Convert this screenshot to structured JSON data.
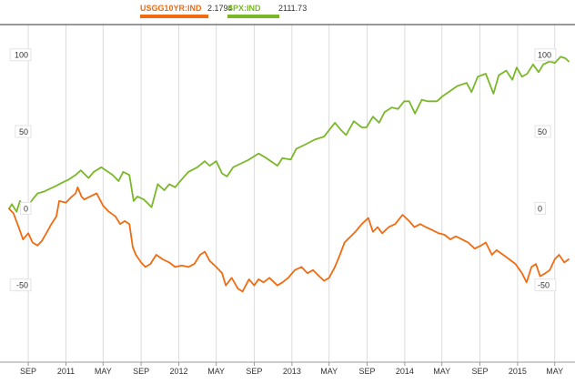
{
  "chart_data": {
    "type": "line",
    "title": "",
    "xlabel": "",
    "ylabel": "",
    "ylim": [
      -100,
      120
    ],
    "yticks": [
      100,
      50,
      0,
      -50
    ],
    "ytick_labels": [
      "100",
      "50",
      "0",
      "-50"
    ],
    "xlim": [
      "2010-07-01",
      "2015-06-15"
    ],
    "xticks": [
      {
        "date": "2010-09-01",
        "label": "SEP"
      },
      {
        "date": "2011-01-01",
        "label": "2011"
      },
      {
        "date": "2011-05-01",
        "label": "MAY"
      },
      {
        "date": "2011-09-01",
        "label": "SEP"
      },
      {
        "date": "2012-01-01",
        "label": "2012"
      },
      {
        "date": "2012-05-01",
        "label": "MAY"
      },
      {
        "date": "2012-09-01",
        "label": "SEP"
      },
      {
        "date": "2013-01-01",
        "label": "2013"
      },
      {
        "date": "2013-05-01",
        "label": "MAY"
      },
      {
        "date": "2013-09-01",
        "label": "SEP"
      },
      {
        "date": "2014-01-01",
        "label": "2014"
      },
      {
        "date": "2014-05-01",
        "label": "MAY"
      },
      {
        "date": "2014-09-01",
        "label": "SEP"
      },
      {
        "date": "2015-01-01",
        "label": "2015"
      },
      {
        "date": "2015-05-01",
        "label": "MAY"
      }
    ],
    "grid": "vertical",
    "legend_position": "top",
    "series": [
      {
        "name": "USGG10YR:IND",
        "last_value": "2.1794",
        "color": "#f26b10",
        "points": [
          [
            "2010-07-01",
            0
          ],
          [
            "2010-07-15",
            -3
          ],
          [
            "2010-08-01",
            -12
          ],
          [
            "2010-08-15",
            -20
          ],
          [
            "2010-09-01",
            -16
          ],
          [
            "2010-09-15",
            -22
          ],
          [
            "2010-10-01",
            -24
          ],
          [
            "2010-10-15",
            -21
          ],
          [
            "2010-11-01",
            -15
          ],
          [
            "2010-11-15",
            -10
          ],
          [
            "2010-12-01",
            -5
          ],
          [
            "2010-12-10",
            5
          ],
          [
            "2011-01-01",
            4
          ],
          [
            "2011-01-15",
            7
          ],
          [
            "2011-02-01",
            10
          ],
          [
            "2011-02-08",
            14
          ],
          [
            "2011-02-20",
            8
          ],
          [
            "2011-03-01",
            6
          ],
          [
            "2011-03-20",
            8
          ],
          [
            "2011-04-10",
            10
          ],
          [
            "2011-05-01",
            2
          ],
          [
            "2011-05-20",
            -2
          ],
          [
            "2011-06-10",
            -5
          ],
          [
            "2011-06-25",
            -10
          ],
          [
            "2011-07-10",
            -8
          ],
          [
            "2011-07-25",
            -10
          ],
          [
            "2011-08-05",
            -25
          ],
          [
            "2011-08-15",
            -30
          ],
          [
            "2011-09-01",
            -35
          ],
          [
            "2011-09-15",
            -38
          ],
          [
            "2011-10-01",
            -36
          ],
          [
            "2011-10-20",
            -30
          ],
          [
            "2011-11-10",
            -33
          ],
          [
            "2011-12-01",
            -35
          ],
          [
            "2011-12-20",
            -38
          ],
          [
            "2012-01-10",
            -37
          ],
          [
            "2012-02-01",
            -38
          ],
          [
            "2012-02-20",
            -36
          ],
          [
            "2012-03-10",
            -30
          ],
          [
            "2012-03-25",
            -28
          ],
          [
            "2012-04-10",
            -34
          ],
          [
            "2012-05-01",
            -38
          ],
          [
            "2012-05-20",
            -42
          ],
          [
            "2012-06-01",
            -50
          ],
          [
            "2012-06-20",
            -45
          ],
          [
            "2012-07-10",
            -52
          ],
          [
            "2012-07-25",
            -54
          ],
          [
            "2012-08-15",
            -46
          ],
          [
            "2012-09-01",
            -50
          ],
          [
            "2012-09-15",
            -46
          ],
          [
            "2012-10-01",
            -48
          ],
          [
            "2012-10-20",
            -45
          ],
          [
            "2012-11-15",
            -50
          ],
          [
            "2012-12-01",
            -48
          ],
          [
            "2012-12-20",
            -45
          ],
          [
            "2013-01-10",
            -40
          ],
          [
            "2013-02-01",
            -38
          ],
          [
            "2013-02-20",
            -42
          ],
          [
            "2013-03-10",
            -40
          ],
          [
            "2013-03-25",
            -43
          ],
          [
            "2013-04-15",
            -47
          ],
          [
            "2013-05-01",
            -45
          ],
          [
            "2013-05-20",
            -38
          ],
          [
            "2013-06-05",
            -30
          ],
          [
            "2013-06-20",
            -22
          ],
          [
            "2013-07-10",
            -18
          ],
          [
            "2013-07-25",
            -15
          ],
          [
            "2013-08-15",
            -10
          ],
          [
            "2013-09-05",
            -6
          ],
          [
            "2013-09-20",
            -15
          ],
          [
            "2013-10-05",
            -12
          ],
          [
            "2013-10-20",
            -16
          ],
          [
            "2013-11-10",
            -12
          ],
          [
            "2013-12-01",
            -10
          ],
          [
            "2013-12-25",
            -4
          ],
          [
            "2014-01-15",
            -8
          ],
          [
            "2014-02-01",
            -12
          ],
          [
            "2014-02-20",
            -10
          ],
          [
            "2014-03-10",
            -12
          ],
          [
            "2014-04-01",
            -14
          ],
          [
            "2014-04-20",
            -16
          ],
          [
            "2014-05-10",
            -17
          ],
          [
            "2014-05-28",
            -20
          ],
          [
            "2014-06-15",
            -18
          ],
          [
            "2014-07-05",
            -20
          ],
          [
            "2014-07-25",
            -22
          ],
          [
            "2014-08-15",
            -26
          ],
          [
            "2014-09-05",
            -24
          ],
          [
            "2014-09-20",
            -22
          ],
          [
            "2014-10-10",
            -30
          ],
          [
            "2014-10-25",
            -27
          ],
          [
            "2014-11-15",
            -30
          ],
          [
            "2014-12-05",
            -33
          ],
          [
            "2014-12-25",
            -36
          ],
          [
            "2015-01-15",
            -42
          ],
          [
            "2015-01-30",
            -48
          ],
          [
            "2015-02-15",
            -38
          ],
          [
            "2015-03-01",
            -36
          ],
          [
            "2015-03-15",
            -44
          ],
          [
            "2015-04-01",
            -42
          ],
          [
            "2015-04-15",
            -40
          ],
          [
            "2015-05-01",
            -33
          ],
          [
            "2015-05-15",
            -30
          ],
          [
            "2015-06-01",
            -35
          ],
          [
            "2015-06-15",
            -33
          ]
        ]
      },
      {
        "name": "SPX:IND",
        "last_value": "2111.73",
        "color": "#7ab829",
        "points": [
          [
            "2010-07-01",
            0
          ],
          [
            "2010-07-10",
            3
          ],
          [
            "2010-07-25",
            -2
          ],
          [
            "2010-08-05",
            5
          ],
          [
            "2010-08-20",
            0
          ],
          [
            "2010-09-01",
            2
          ],
          [
            "2010-09-15",
            6
          ],
          [
            "2010-10-01",
            10
          ],
          [
            "2010-10-20",
            11
          ],
          [
            "2010-11-10",
            13
          ],
          [
            "2010-12-01",
            15
          ],
          [
            "2010-12-20",
            17
          ],
          [
            "2011-01-10",
            19
          ],
          [
            "2011-02-01",
            22
          ],
          [
            "2011-02-18",
            25
          ],
          [
            "2011-03-15",
            20
          ],
          [
            "2011-04-01",
            24
          ],
          [
            "2011-04-25",
            27
          ],
          [
            "2011-05-10",
            25
          ],
          [
            "2011-06-01",
            22
          ],
          [
            "2011-06-20",
            18
          ],
          [
            "2011-07-05",
            24
          ],
          [
            "2011-07-25",
            22
          ],
          [
            "2011-08-08",
            5
          ],
          [
            "2011-08-20",
            8
          ],
          [
            "2011-09-10",
            6
          ],
          [
            "2011-09-25",
            3
          ],
          [
            "2011-10-05",
            1
          ],
          [
            "2011-10-25",
            16
          ],
          [
            "2011-11-15",
            12
          ],
          [
            "2011-12-01",
            16
          ],
          [
            "2011-12-20",
            14
          ],
          [
            "2012-01-10",
            19
          ],
          [
            "2012-02-01",
            24
          ],
          [
            "2012-03-01",
            27
          ],
          [
            "2012-03-25",
            31
          ],
          [
            "2012-04-10",
            28
          ],
          [
            "2012-05-01",
            31
          ],
          [
            "2012-05-20",
            23
          ],
          [
            "2012-06-05",
            21
          ],
          [
            "2012-06-25",
            27
          ],
          [
            "2012-07-15",
            29
          ],
          [
            "2012-08-15",
            32
          ],
          [
            "2012-09-15",
            36
          ],
          [
            "2012-10-10",
            33
          ],
          [
            "2012-11-15",
            28
          ],
          [
            "2012-12-01",
            33
          ],
          [
            "2012-12-28",
            32
          ],
          [
            "2013-01-15",
            39
          ],
          [
            "2013-02-15",
            42
          ],
          [
            "2013-03-15",
            45
          ],
          [
            "2013-04-15",
            47
          ],
          [
            "2013-05-20",
            56
          ],
          [
            "2013-06-10",
            51
          ],
          [
            "2013-06-25",
            48
          ],
          [
            "2013-07-20",
            57
          ],
          [
            "2013-08-15",
            53
          ],
          [
            "2013-08-30",
            53
          ],
          [
            "2013-09-20",
            60
          ],
          [
            "2013-10-10",
            56
          ],
          [
            "2013-10-28",
            63
          ],
          [
            "2013-11-20",
            66
          ],
          [
            "2013-12-10",
            65
          ],
          [
            "2013-12-30",
            70
          ],
          [
            "2014-01-15",
            70
          ],
          [
            "2014-02-03",
            62
          ],
          [
            "2014-02-25",
            71
          ],
          [
            "2014-03-15",
            70
          ],
          [
            "2014-04-15",
            70
          ],
          [
            "2014-05-01",
            73
          ],
          [
            "2014-05-30",
            77
          ],
          [
            "2014-06-20",
            80
          ],
          [
            "2014-07-20",
            82
          ],
          [
            "2014-08-05",
            76
          ],
          [
            "2014-08-25",
            86
          ],
          [
            "2014-09-20",
            88
          ],
          [
            "2014-10-15",
            75
          ],
          [
            "2014-11-01",
            87
          ],
          [
            "2014-11-25",
            90
          ],
          [
            "2014-12-15",
            84
          ],
          [
            "2014-12-29",
            92
          ],
          [
            "2015-01-15",
            86
          ],
          [
            "2015-02-01",
            88
          ],
          [
            "2015-02-20",
            94
          ],
          [
            "2015-03-10",
            89
          ],
          [
            "2015-03-25",
            94
          ],
          [
            "2015-04-15",
            96
          ],
          [
            "2015-05-01",
            95
          ],
          [
            "2015-05-20",
            99
          ],
          [
            "2015-06-05",
            98
          ],
          [
            "2015-06-15",
            96
          ]
        ]
      }
    ]
  }
}
